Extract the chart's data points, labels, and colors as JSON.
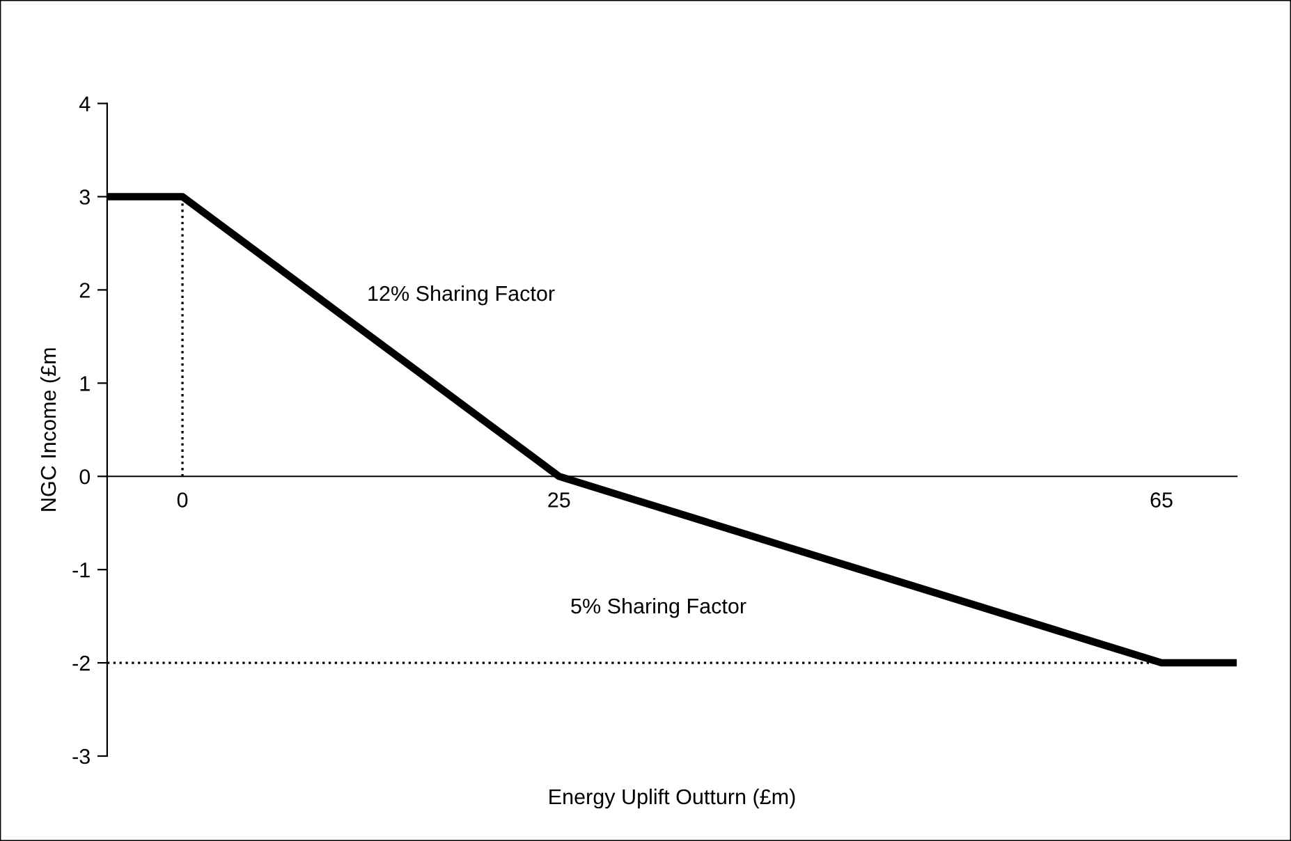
{
  "chart_data": {
    "type": "line",
    "xlabel": "Energy Uplift Outturn (£m)",
    "ylabel": "NGC Income (£m",
    "categories": [
      null,
      "0",
      null,
      null,
      null,
      null,
      "25",
      null,
      null,
      null,
      null,
      null,
      null,
      null,
      "65",
      null
    ],
    "series": [
      {
        "color": "#000000",
        "values": [
          3,
          3,
          2.4,
          1.8,
          1.2,
          0.6,
          0,
          -0.25,
          -0.5,
          -0.75,
          -1,
          -1.25,
          -1.5,
          -1.75,
          -2,
          -2
        ]
      }
    ],
    "ylim": [
      -3,
      4
    ],
    "yticks": [
      -3,
      -2,
      -1,
      0,
      1,
      2,
      3,
      4
    ],
    "ref_lines": [
      {
        "axis": "x",
        "value": "0",
        "color": "#000000",
        "line_style": "dotted"
      },
      {
        "axis": "y",
        "value": -2,
        "color": "#000000",
        "line_style": "dotted"
      }
    ],
    "annotations": [
      "12% Sharing Factor",
      "5% Sharing Factor"
    ],
    "grid": false,
    "legend": false,
    "marker": "none",
    "line_style": "solid"
  }
}
